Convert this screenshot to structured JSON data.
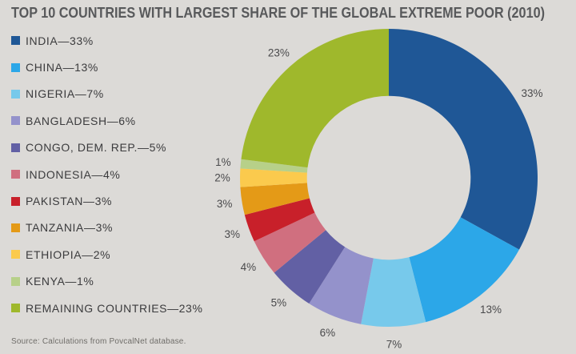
{
  "background_color": "#dcdad7",
  "header": {
    "title": "TOP 10 COUNTRIES WITH LARGEST SHARE OF THE GLOBAL EXTREME POOR (2010)"
  },
  "source_note": "Source: Calculations from PovcalNet database.",
  "text_colors": {
    "title": "#58595b",
    "legend": "#3b3b3d",
    "slice_label": "#4a4a4c",
    "source": "#6f6d69"
  },
  "chart_data": {
    "type": "pie",
    "variant": "donut",
    "title": "TOP 10 COUNTRIES WITH LARGEST SHARE OF THE GLOBAL EXTREME POOR (2010)",
    "start_angle_deg": 0,
    "direction": "clockwise",
    "inner_radius_ratio": 0.55,
    "legend_position": "left",
    "labels_position": "outside",
    "slices": [
      {
        "label": "INDIA",
        "value": 33,
        "pct_label": "33%",
        "legend_text": "INDIA—33%",
        "color": "#1f5796"
      },
      {
        "label": "CHINA",
        "value": 13,
        "pct_label": "13%",
        "legend_text": "CHINA—13%",
        "color": "#2ca7e8"
      },
      {
        "label": "NIGERIA",
        "value": 7,
        "pct_label": "7%",
        "legend_text": "NIGERIA—7%",
        "color": "#77c9eb"
      },
      {
        "label": "BANGLADESH",
        "value": 6,
        "pct_label": "6%",
        "legend_text": "BANGLADESH—6%",
        "color": "#9492cb"
      },
      {
        "label": "CONGO, DEM. REP.",
        "value": 5,
        "pct_label": "5%",
        "legend_text": "CONGO, DEM. REP.—5%",
        "color": "#6260a4"
      },
      {
        "label": "INDONESIA",
        "value": 4,
        "pct_label": "4%",
        "legend_text": "INDONESIA—4%",
        "color": "#d06f7f"
      },
      {
        "label": "PAKISTAN",
        "value": 3,
        "pct_label": "3%",
        "legend_text": "PAKISTAN—3%",
        "color": "#c8202a"
      },
      {
        "label": "TANZANIA",
        "value": 3,
        "pct_label": "3%",
        "legend_text": "TANZANIA—3%",
        "color": "#e49a17"
      },
      {
        "label": "ETHIOPIA",
        "value": 2,
        "pct_label": "2%",
        "legend_text": "ETHIOPIA—2%",
        "color": "#fbca4d"
      },
      {
        "label": "KENYA",
        "value": 1,
        "pct_label": "1%",
        "legend_text": "KENYA—1%",
        "color": "#b7d089"
      },
      {
        "label": "REMAINING COUNTRIES",
        "value": 23,
        "pct_label": "23%",
        "legend_text": "REMAINING COUNTRIES—23%",
        "color": "#9fb82c"
      }
    ]
  }
}
